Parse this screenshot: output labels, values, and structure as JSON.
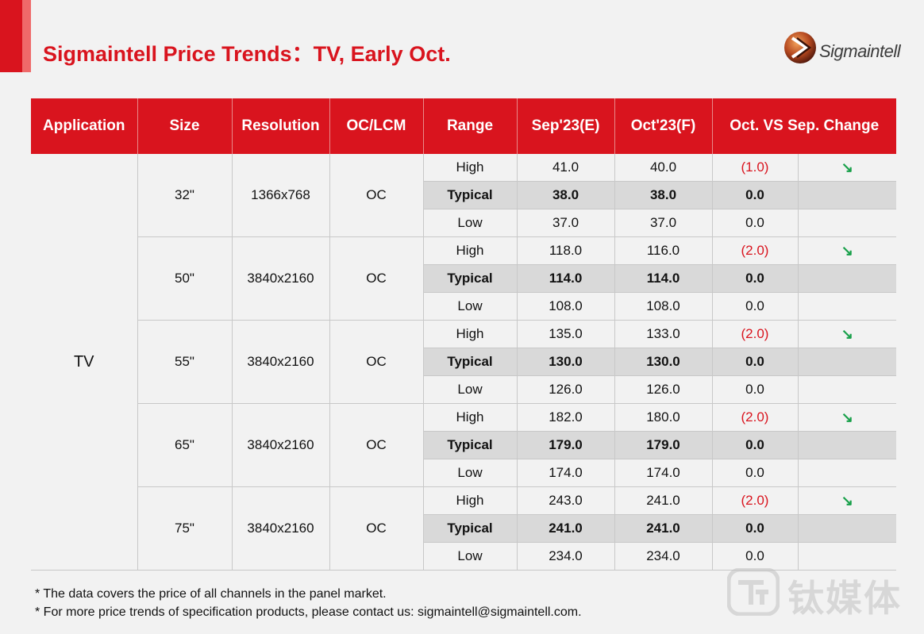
{
  "header": {
    "title": "Sigmaintell Price Trends：TV, Early Oct.",
    "logo_text": "Sigmaintell",
    "brand_color": "#d9141e"
  },
  "table": {
    "columns": [
      "Application",
      "Size",
      "Resolution",
      "OC/LCM",
      "Range",
      "Sep'23(E)",
      "Oct'23(F)",
      "Oct. VS Sep. Change"
    ],
    "application": "TV",
    "groups": [
      {
        "size": "32\"",
        "resolution": "1366x768",
        "oc_lcm": "OC",
        "rows": [
          {
            "range": "High",
            "sep": "41.0",
            "oct": "40.0",
            "change": "(1.0)",
            "trend": "↘"
          },
          {
            "range": "Typical",
            "sep": "38.0",
            "oct": "38.0",
            "change": "0.0",
            "trend": ""
          },
          {
            "range": "Low",
            "sep": "37.0",
            "oct": "37.0",
            "change": "0.0",
            "trend": ""
          }
        ]
      },
      {
        "size": "50\"",
        "resolution": "3840x2160",
        "oc_lcm": "OC",
        "rows": [
          {
            "range": "High",
            "sep": "118.0",
            "oct": "116.0",
            "change": "(2.0)",
            "trend": "↘"
          },
          {
            "range": "Typical",
            "sep": "114.0",
            "oct": "114.0",
            "change": "0.0",
            "trend": ""
          },
          {
            "range": "Low",
            "sep": "108.0",
            "oct": "108.0",
            "change": "0.0",
            "trend": ""
          }
        ]
      },
      {
        "size": "55\"",
        "resolution": "3840x2160",
        "oc_lcm": "OC",
        "rows": [
          {
            "range": "High",
            "sep": "135.0",
            "oct": "133.0",
            "change": "(2.0)",
            "trend": "↘"
          },
          {
            "range": "Typical",
            "sep": "130.0",
            "oct": "130.0",
            "change": "0.0",
            "trend": ""
          },
          {
            "range": "Low",
            "sep": "126.0",
            "oct": "126.0",
            "change": "0.0",
            "trend": ""
          }
        ]
      },
      {
        "size": "65\"",
        "resolution": "3840x2160",
        "oc_lcm": "OC",
        "rows": [
          {
            "range": "High",
            "sep": "182.0",
            "oct": "180.0",
            "change": "(2.0)",
            "trend": "↘"
          },
          {
            "range": "Typical",
            "sep": "179.0",
            "oct": "179.0",
            "change": "0.0",
            "trend": ""
          },
          {
            "range": "Low",
            "sep": "174.0",
            "oct": "174.0",
            "change": "0.0",
            "trend": ""
          }
        ]
      },
      {
        "size": "75\"",
        "resolution": "3840x2160",
        "oc_lcm": "OC",
        "rows": [
          {
            "range": "High",
            "sep": "243.0",
            "oct": "241.0",
            "change": "(2.0)",
            "trend": "↘"
          },
          {
            "range": "Typical",
            "sep": "241.0",
            "oct": "241.0",
            "change": "0.0",
            "trend": ""
          },
          {
            "range": "Low",
            "sep": "234.0",
            "oct": "234.0",
            "change": "0.0",
            "trend": ""
          }
        ]
      }
    ]
  },
  "footnotes": [
    "* The data covers the price of all channels in the panel market.",
    "* For more price trends of specification products, please contact us: sigmaintell@sigmaintell.com."
  ],
  "watermark": {
    "text": "钛媒体"
  }
}
